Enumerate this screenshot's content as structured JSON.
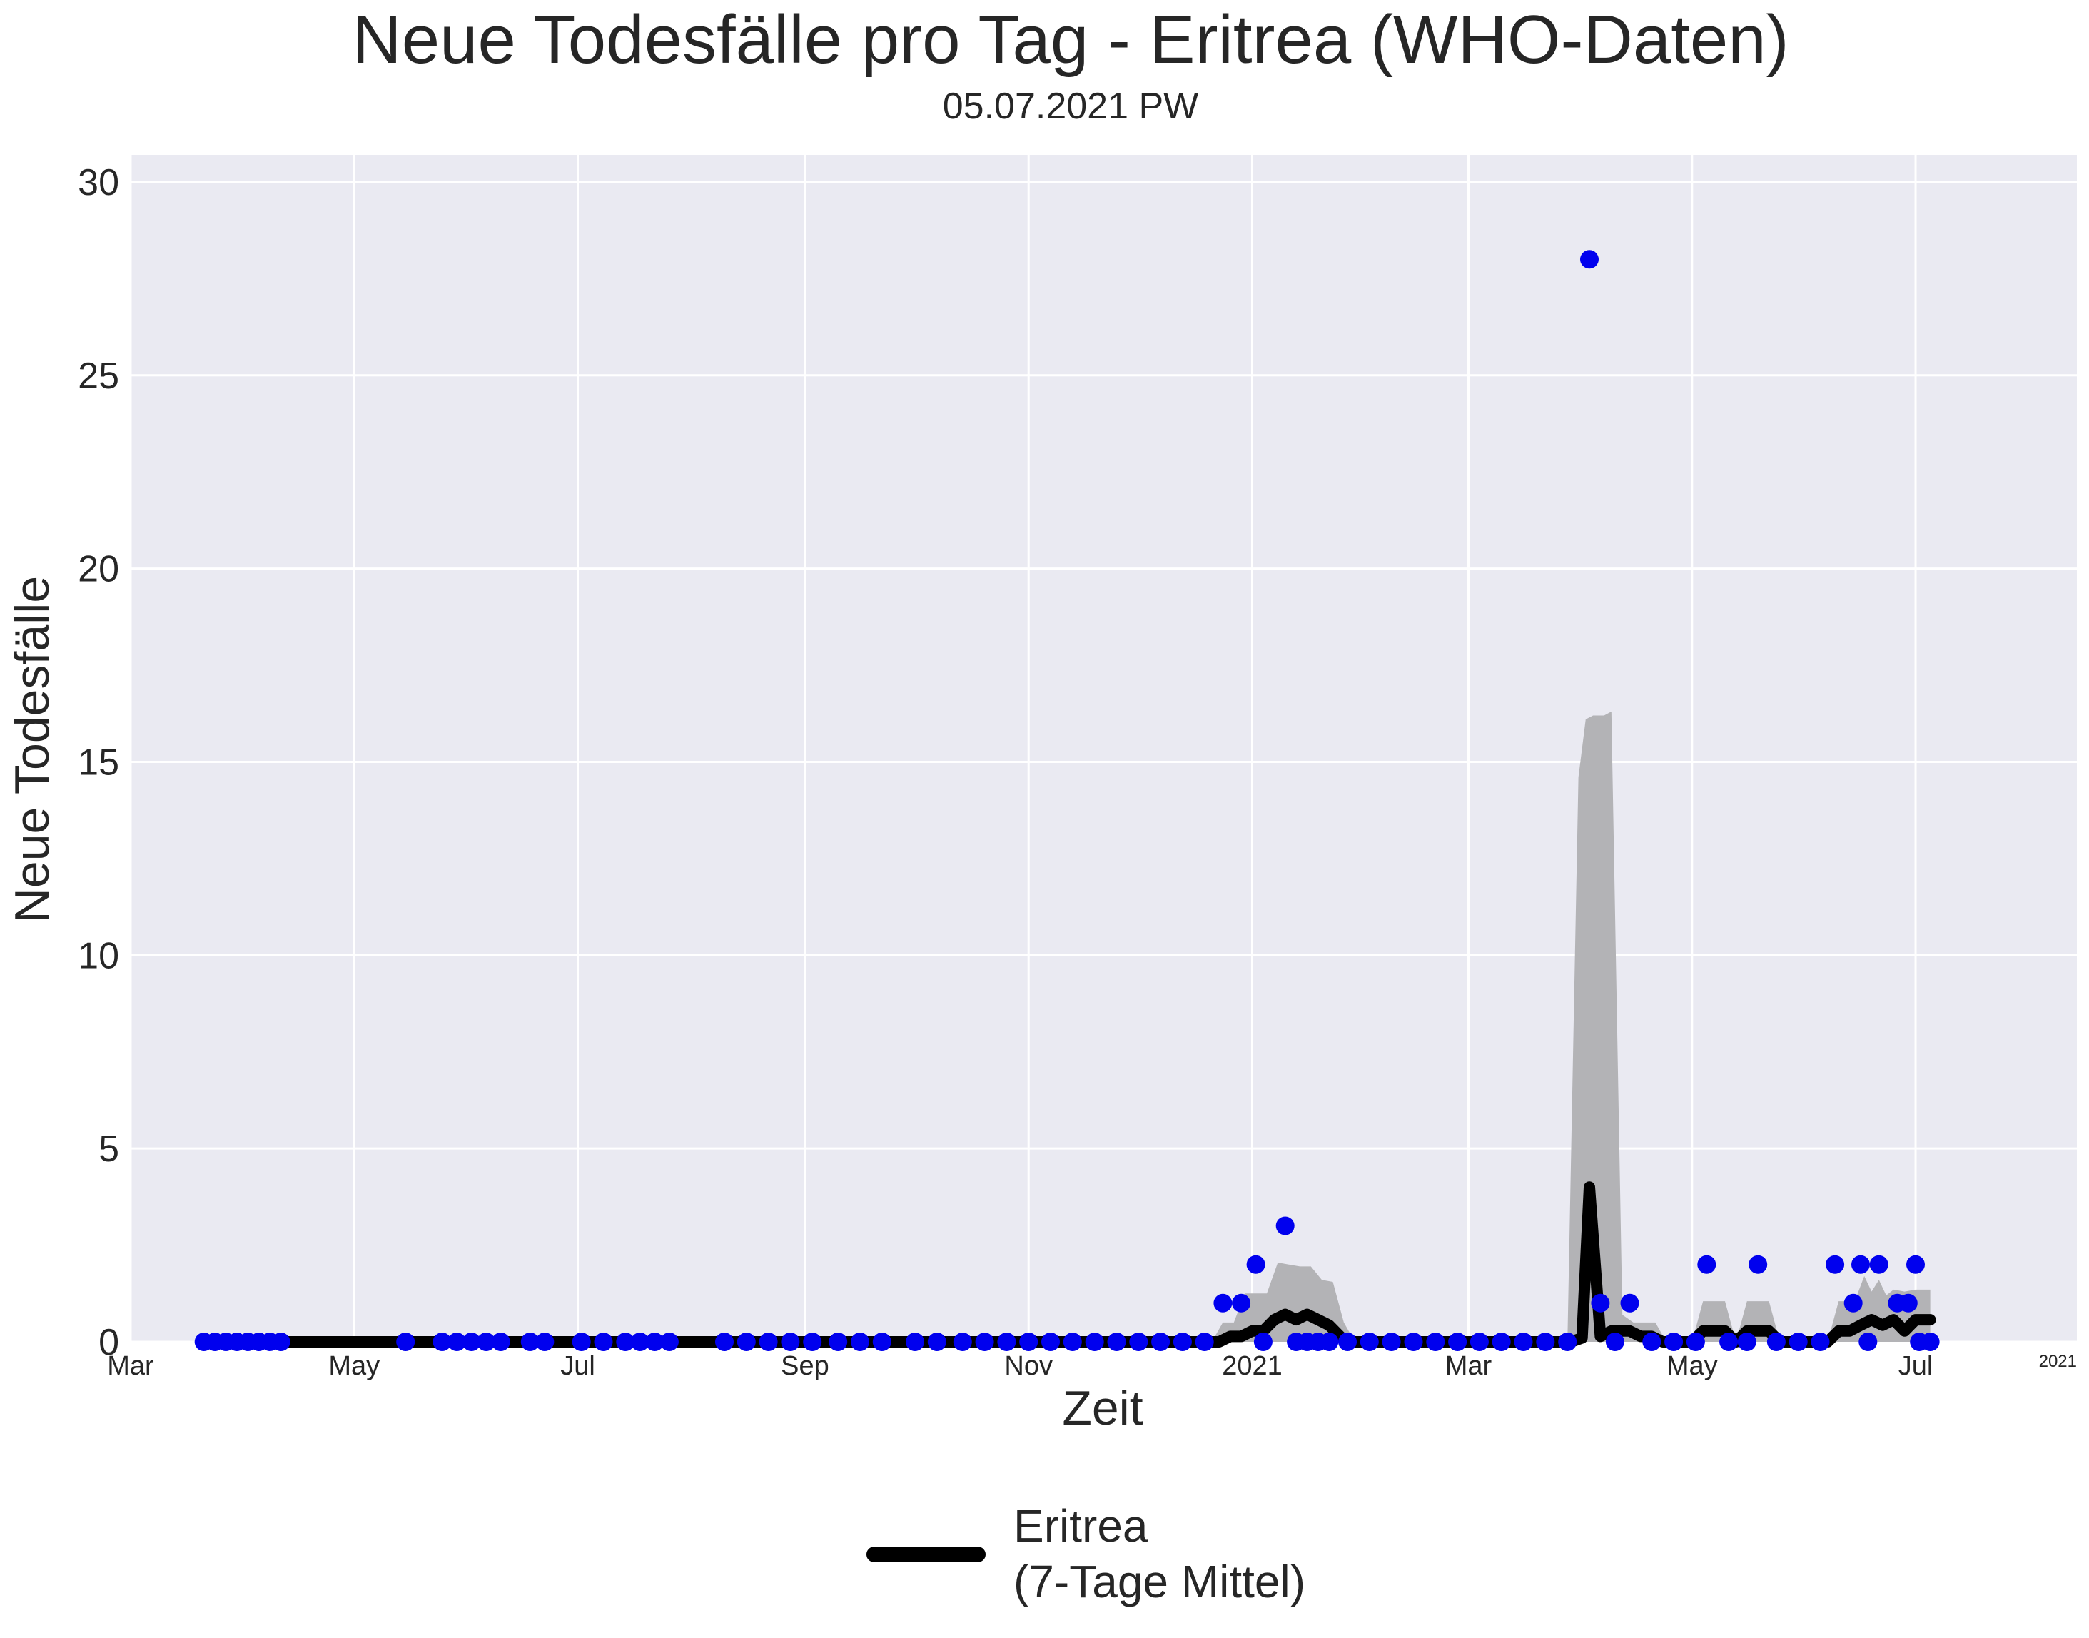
{
  "chart_data": {
    "type": "line",
    "title": "Neue Todesfälle pro Tag - Eritrea (WHO-Daten)",
    "subtitle": "05.07.2021 PW",
    "xlabel": "Zeit",
    "ylabel": "Neue Todesfälle",
    "x_range": [
      "2020-03-01",
      "2021-08-14"
    ],
    "ylim": [
      0,
      30.7
    ],
    "y_ticks": [
      0,
      5,
      10,
      15,
      20,
      25,
      30
    ],
    "x_ticks": [
      {
        "date": "2020-03-01",
        "label": "Mar"
      },
      {
        "date": "2020-05-01",
        "label": "May"
      },
      {
        "date": "2020-07-01",
        "label": "Jul"
      },
      {
        "date": "2020-09-01",
        "label": "Sep"
      },
      {
        "date": "2020-11-01",
        "label": "Nov"
      },
      {
        "date": "2021-01-01",
        "label": "2021"
      },
      {
        "date": "2021-03-01",
        "label": "Mar"
      },
      {
        "date": "2021-05-01",
        "label": "May"
      },
      {
        "date": "2021-07-01",
        "label": "Jul"
      }
    ],
    "x_offset_label": "2021",
    "grid": true,
    "legend": {
      "position": "bottom-center",
      "label": "Eritrea\n(7-Tage Mittel)"
    },
    "colors": {
      "background": "#eaeaf2",
      "grid": "#ffffff",
      "points": "#0000ee",
      "line": "#000000",
      "band": "#b3b3b6"
    },
    "series": [
      {
        "name": "Eritrea\n(7-Tage Mittel)",
        "kind": "rolling-mean-line",
        "x": [
          "2020-03-21",
          "2020-12-23",
          "2020-12-26",
          "2020-12-29",
          "2021-01-01",
          "2021-01-04",
          "2021-01-07",
          "2021-01-10",
          "2021-01-13",
          "2021-01-16",
          "2021-01-19",
          "2021-01-22",
          "2021-01-25",
          "2021-01-27",
          "2021-03-29",
          "2021-04-01",
          "2021-04-03",
          "2021-04-06",
          "2021-04-09",
          "2021-04-12",
          "2021-04-14",
          "2021-04-17",
          "2021-04-20",
          "2021-04-23",
          "2021-04-28",
          "2021-05-01",
          "2021-05-04",
          "2021-05-07",
          "2021-05-10",
          "2021-05-13",
          "2021-05-16",
          "2021-05-19",
          "2021-05-22",
          "2021-05-25",
          "2021-06-07",
          "2021-06-10",
          "2021-06-13",
          "2021-06-16",
          "2021-06-19",
          "2021-06-22",
          "2021-06-25",
          "2021-06-28",
          "2021-07-01",
          "2021-07-05"
        ],
        "y": [
          0,
          0,
          0.14,
          0.14,
          0.28,
          0.28,
          0.57,
          0.71,
          0.57,
          0.71,
          0.57,
          0.43,
          0.14,
          0,
          0,
          0.1,
          4,
          0.14,
          0.28,
          0.28,
          0.28,
          0.14,
          0.14,
          0,
          0,
          0,
          0.28,
          0.28,
          0.28,
          0,
          0.28,
          0.28,
          0.28,
          0,
          0,
          0.28,
          0.28,
          0.43,
          0.57,
          0.43,
          0.57,
          0.28,
          0.57,
          0.57
        ]
      },
      {
        "name": "",
        "kind": "confidence-band",
        "x": [
          "2020-03-21",
          "2020-12-21",
          "2020-12-24",
          "2020-12-27",
          "2020-12-30",
          "2021-01-02",
          "2021-01-05",
          "2021-01-08",
          "2021-01-11",
          "2021-01-14",
          "2021-01-17",
          "2021-01-20",
          "2021-01-23",
          "2021-01-26",
          "2021-01-29",
          "2021-03-28",
          "2021-03-31",
          "2021-04-02",
          "2021-04-04",
          "2021-04-07",
          "2021-04-09",
          "2021-04-12",
          "2021-04-15",
          "2021-04-18",
          "2021-04-21",
          "2021-04-24",
          "2021-04-28",
          "2021-05-01",
          "2021-05-04",
          "2021-05-07",
          "2021-05-10",
          "2021-05-13",
          "2021-05-16",
          "2021-05-19",
          "2021-05-22",
          "2021-05-25",
          "2021-06-07",
          "2021-06-10",
          "2021-06-13",
          "2021-06-15",
          "2021-06-17",
          "2021-06-19",
          "2021-06-21",
          "2021-06-23",
          "2021-06-25",
          "2021-06-28",
          "2021-07-01",
          "2021-07-05"
        ],
        "upper": [
          0,
          0,
          0.5,
          0.5,
          1.25,
          1.25,
          1.25,
          2.05,
          2.0,
          1.95,
          1.95,
          1.6,
          1.55,
          0.5,
          0,
          0,
          14.6,
          16.1,
          16.2,
          16.2,
          16.3,
          0.7,
          0.5,
          0.5,
          0.5,
          0,
          0,
          0,
          1.05,
          1.05,
          1.05,
          0,
          1.05,
          1.05,
          1.05,
          0,
          0,
          1.05,
          1.05,
          1.2,
          1.7,
          1.3,
          1.6,
          1.2,
          1.35,
          1.3,
          1.35,
          1.35
        ],
        "lower": [
          0,
          0,
          0,
          0,
          0,
          0,
          0,
          0,
          0,
          0,
          0,
          0,
          0,
          0,
          0,
          0,
          0,
          0,
          0,
          0,
          0,
          0,
          0,
          0,
          0,
          0,
          0,
          0,
          0,
          0,
          0,
          0,
          0,
          0,
          0,
          0,
          0,
          0,
          0,
          0,
          0,
          0,
          0,
          0,
          0,
          0,
          0,
          0
        ]
      },
      {
        "name": "",
        "kind": "daily-points",
        "x": [
          "2020-03-21",
          "2020-03-24",
          "2020-03-27",
          "2020-03-30",
          "2020-04-02",
          "2020-04-05",
          "2020-04-08",
          "2020-04-11",
          "2020-05-15",
          "2020-05-25",
          "2020-05-29",
          "2020-06-02",
          "2020-06-06",
          "2020-06-10",
          "2020-06-18",
          "2020-06-22",
          "2020-07-02",
          "2020-07-08",
          "2020-07-14",
          "2020-07-18",
          "2020-07-22",
          "2020-07-26",
          "2020-08-10",
          "2020-08-16",
          "2020-08-22",
          "2020-08-28",
          "2020-09-03",
          "2020-09-10",
          "2020-09-16",
          "2020-09-22",
          "2020-10-01",
          "2020-10-07",
          "2020-10-14",
          "2020-10-20",
          "2020-10-26",
          "2020-11-01",
          "2020-11-07",
          "2020-11-13",
          "2020-11-19",
          "2020-11-25",
          "2020-12-01",
          "2020-12-07",
          "2020-12-13",
          "2020-12-19",
          "2020-12-24",
          "2020-12-29",
          "2021-01-02",
          "2021-01-04",
          "2021-01-10",
          "2021-01-13",
          "2021-01-16",
          "2021-01-19",
          "2021-01-22",
          "2021-01-27",
          "2021-02-02",
          "2021-02-08",
          "2021-02-14",
          "2021-02-20",
          "2021-02-26",
          "2021-03-04",
          "2021-03-10",
          "2021-03-16",
          "2021-03-22",
          "2021-03-28",
          "2021-04-03",
          "2021-04-06",
          "2021-04-10",
          "2021-04-14",
          "2021-04-20",
          "2021-04-26",
          "2021-05-02",
          "2021-05-05",
          "2021-05-11",
          "2021-05-16",
          "2021-05-19",
          "2021-05-24",
          "2021-05-30",
          "2021-06-05",
          "2021-06-09",
          "2021-06-14",
          "2021-06-16",
          "2021-06-18",
          "2021-06-21",
          "2021-06-26",
          "2021-06-29",
          "2021-07-01",
          "2021-07-02",
          "2021-07-05"
        ],
        "y": [
          0,
          0,
          0,
          0,
          0,
          0,
          0,
          0,
          0,
          0,
          0,
          0,
          0,
          0,
          0,
          0,
          0,
          0,
          0,
          0,
          0,
          0,
          0,
          0,
          0,
          0,
          0,
          0,
          0,
          0,
          0,
          0,
          0,
          0,
          0,
          0,
          0,
          0,
          0,
          0,
          0,
          0,
          0,
          0,
          1,
          1,
          2,
          0,
          3,
          0,
          0,
          0,
          0,
          0,
          0,
          0,
          0,
          0,
          0,
          0,
          0,
          0,
          0,
          0,
          28,
          1,
          0,
          1,
          0,
          0,
          0,
          2,
          0,
          0,
          2,
          0,
          0,
          0,
          2,
          1,
          2,
          0,
          2,
          1,
          1,
          2,
          0,
          0
        ]
      }
    ]
  }
}
